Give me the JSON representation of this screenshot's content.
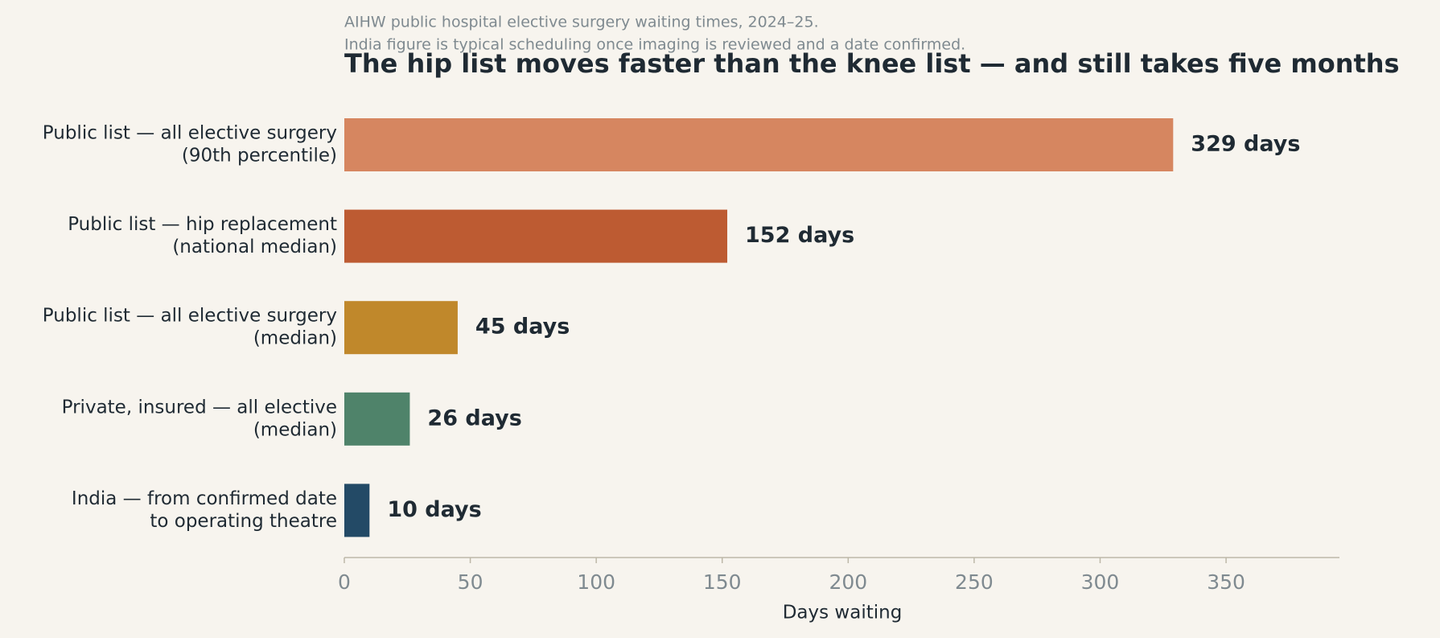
{
  "chart_data": {
    "type": "barh",
    "subtitle": [
      "AIHW public hospital elective surgery waiting times, 2024–25.",
      "India figure is typical scheduling once imaging is reviewed and a date confirmed."
    ],
    "title": "The hip list moves faster than the knee list — and still takes five months",
    "categories": [
      [
        "Public list — all elective surgery",
        "(90th percentile)"
      ],
      [
        "Public list — hip replacement",
        "(national median)"
      ],
      [
        "Public list — all elective surgery",
        "(median)"
      ],
      [
        "Private, insured — all elective",
        "(median)"
      ],
      [
        "India — from confirmed date",
        "to operating theatre"
      ]
    ],
    "values": [
      329,
      152,
      45,
      26,
      10
    ],
    "value_labels": [
      "329 days",
      "152 days",
      "45 days",
      "26 days",
      "10 days"
    ],
    "colors": [
      "#d68660",
      "#bd5b32",
      "#c0882b",
      "#4f836a",
      "#234a66"
    ],
    "xlabel": "Days waiting",
    "xlim": [
      0,
      395
    ],
    "xticks": [
      0,
      50,
      100,
      150,
      200,
      250,
      300,
      350
    ]
  }
}
